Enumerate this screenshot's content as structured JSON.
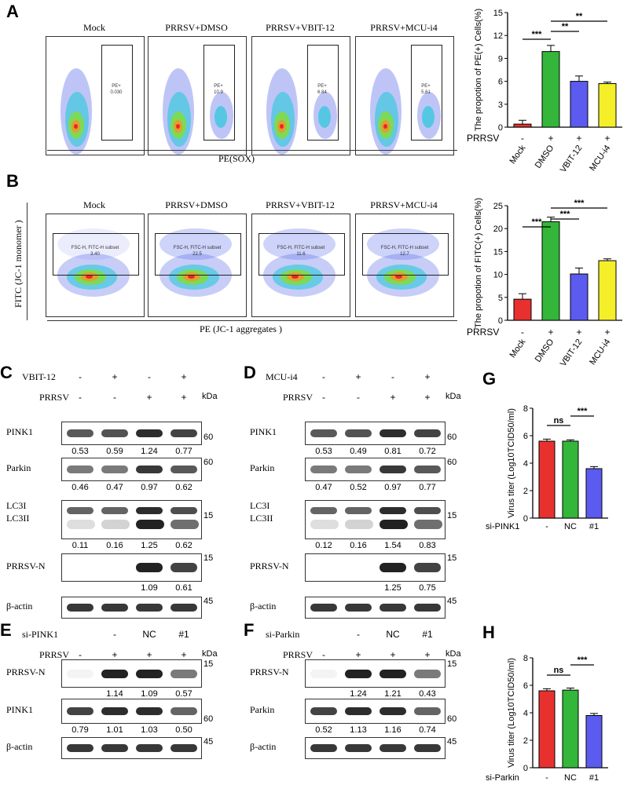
{
  "panels": {
    "A": {
      "letter": "A",
      "flow": {
        "titles": [
          "Mock",
          "PRRSV+DMSO",
          "PRRSV+VBIT-12",
          "PRRSV+MCU-i4"
        ],
        "gate_name": "PE+",
        "gate_values": [
          "0.030",
          "10.9",
          "6.84",
          "5.61"
        ],
        "xaxis_label": "PE(SOX)"
      }
    },
    "B": {
      "letter": "B",
      "flow": {
        "titles": [
          "Mock",
          "PRRSV+DMSO",
          "PRRSV+VBIT-12",
          "PRRSV+MCU-i4"
        ],
        "gate_name": "FSC-H, FITC-H subset",
        "gate_values": [
          "3.40",
          "22.5",
          "11.6",
          "12.7"
        ],
        "xaxis_label": "PE (JC-1 aggregates )",
        "yaxis_label": "FITC (JC-1 monomer )"
      }
    },
    "C": {
      "letter": "C",
      "treat1_label": "VBIT-12",
      "treat1_signs": [
        "-",
        "+",
        "-",
        "+"
      ],
      "treat2_label": "PRRSV",
      "treat2_signs": [
        "-",
        "-",
        "+",
        "+"
      ],
      "kda": "kDa",
      "blots": [
        {
          "name": "PINK1",
          "mw": "60",
          "values": [
            "0.53",
            "0.59",
            "1.24",
            "0.77"
          ]
        },
        {
          "name": "Parkin",
          "mw": "60",
          "values": [
            "0.46",
            "0.47",
            "0.97",
            "0.62"
          ]
        },
        {
          "name": "LC3I",
          "name2": "LC3II",
          "mw": "15",
          "values": [
            "0.11",
            "0.16",
            "1.25",
            "0.62"
          ]
        },
        {
          "name": "PRRSV-N",
          "mw": "15",
          "values": [
            "",
            "",
            "1.09",
            "0.61"
          ]
        },
        {
          "name": "β-actin",
          "mw": "45",
          "values": []
        }
      ]
    },
    "D": {
      "letter": "D",
      "treat1_label": "MCU-i4",
      "treat1_signs": [
        "-",
        "+",
        "-",
        "+"
      ],
      "treat2_label": "PRRSV",
      "treat2_signs": [
        "-",
        "-",
        "+",
        "+"
      ],
      "kda": "kDa",
      "blots": [
        {
          "name": "PINK1",
          "mw": "60",
          "values": [
            "0.53",
            "0.49",
            "0.81",
            "0.72"
          ]
        },
        {
          "name": "Parkin",
          "mw": "60",
          "values": [
            "0.47",
            "0.52",
            "0.97",
            "0.77"
          ]
        },
        {
          "name": "LC3I",
          "name2": "LC3II",
          "mw": "15",
          "values": [
            "0.12",
            "0.16",
            "1.54",
            "0.83"
          ]
        },
        {
          "name": "PRRSV-N",
          "mw": "15",
          "values": [
            "",
            "",
            "1.25",
            "0.75"
          ]
        },
        {
          "name": "β-actin",
          "mw": "45",
          "values": []
        }
      ]
    },
    "E": {
      "letter": "E",
      "treat1_label": "si-PINK1",
      "treat1_signs": [
        "",
        "-",
        "NC",
        "#1"
      ],
      "treat2_label": "PRRSV",
      "treat2_signs": [
        "-",
        "+",
        "+",
        "+"
      ],
      "kda": "kDa",
      "blots": [
        {
          "name": "PRRSV-N",
          "mw": "15",
          "values": [
            "",
            "1.14",
            "1.09",
            "0.57"
          ]
        },
        {
          "name": "PINK1",
          "mw": "60",
          "values": [
            "0.79",
            "1.01",
            "1.03",
            "0.50"
          ]
        },
        {
          "name": "β-actin",
          "mw": "45",
          "values": []
        }
      ]
    },
    "F": {
      "letter": "F",
      "treat1_label": "si-Parkin",
      "treat1_signs": [
        "",
        "-",
        "NC",
        "#1"
      ],
      "treat2_label": "PRRSV",
      "treat2_signs": [
        "-",
        "+",
        "+",
        "+"
      ],
      "kda": "kDa",
      "blots": [
        {
          "name": "PRRSV-N",
          "mw": "15",
          "values": [
            "",
            "1.24",
            "1.21",
            "0.43"
          ]
        },
        {
          "name": "Parkin",
          "mw": "60",
          "values": [
            "0.52",
            "1.13",
            "1.16",
            "0.74"
          ]
        },
        {
          "name": "β-actin",
          "mw": "45",
          "values": []
        }
      ]
    },
    "G": {
      "letter": "G"
    },
    "H": {
      "letter": "H"
    }
  },
  "chart_data": [
    {
      "id": "A-bar",
      "type": "bar",
      "ylabel": "The propotion of PE(+) Cells(%)",
      "ylim": [
        0,
        15
      ],
      "yticks": [
        0,
        3,
        6,
        9,
        12,
        15
      ],
      "categories": [
        "Mock",
        "DMSO",
        "VBIT-12",
        "MCU-i4"
      ],
      "values": [
        0.4,
        9.9,
        6.0,
        5.7
      ],
      "errors": [
        0.5,
        0.8,
        0.7,
        0.2
      ],
      "colors": [
        "#e8312f",
        "#33b63a",
        "#5b5bf0",
        "#f5ef2a"
      ],
      "group_label": "PRRSV",
      "group_signs": [
        "-",
        "+",
        "+",
        "+"
      ],
      "significance": [
        {
          "from": 0,
          "to": 1,
          "label": "***"
        },
        {
          "from": 1,
          "to": 2,
          "label": "**"
        },
        {
          "from": 1,
          "to": 3,
          "label": "**"
        }
      ]
    },
    {
      "id": "B-bar",
      "type": "bar",
      "ylabel": "The propotion of FITC(+) Cells(%)",
      "ylim": [
        0,
        25
      ],
      "yticks": [
        0,
        5,
        10,
        15,
        20,
        25
      ],
      "categories": [
        "Mock",
        "DMSO",
        "VBIT-12",
        "MCU-i4"
      ],
      "values": [
        4.6,
        21.5,
        10.1,
        13.0
      ],
      "errors": [
        1.2,
        1.0,
        1.3,
        0.4
      ],
      "colors": [
        "#e8312f",
        "#33b63a",
        "#5b5bf0",
        "#f5ef2a"
      ],
      "group_label": "PRRSV",
      "group_signs": [
        "-",
        "+",
        "+",
        "+"
      ],
      "significance": [
        {
          "from": 0,
          "to": 1,
          "label": "***"
        },
        {
          "from": 1,
          "to": 2,
          "label": "***"
        },
        {
          "from": 1,
          "to": 3,
          "label": "***"
        }
      ]
    },
    {
      "id": "G-bar",
      "type": "bar",
      "ylabel": "Virus titer (Log10TCID50/ml)",
      "ylim": [
        0,
        8
      ],
      "yticks": [
        0,
        2,
        4,
        6,
        8
      ],
      "categories": [
        "-",
        "NC",
        "#1"
      ],
      "values": [
        5.6,
        5.6,
        3.6
      ],
      "errors": [
        0.15,
        0.1,
        0.15
      ],
      "colors": [
        "#e8312f",
        "#33b63a",
        "#5b5bf0"
      ],
      "group_label": "si-PINK1",
      "significance": [
        {
          "from": 0,
          "to": 1,
          "label": "ns"
        },
        {
          "from": 1,
          "to": 2,
          "label": "***"
        }
      ]
    },
    {
      "id": "H-bar",
      "type": "bar",
      "ylabel": "Virus titer (Log10TCID50/ml)",
      "ylim": [
        0,
        8
      ],
      "yticks": [
        0,
        2,
        4,
        6,
        8
      ],
      "categories": [
        "-",
        "NC",
        "#1"
      ],
      "values": [
        5.6,
        5.65,
        3.8
      ],
      "errors": [
        0.15,
        0.15,
        0.15
      ],
      "colors": [
        "#e8312f",
        "#33b63a",
        "#5b5bf0"
      ],
      "group_label": "si-Parkin",
      "significance": [
        {
          "from": 0,
          "to": 1,
          "label": "ns"
        },
        {
          "from": 1,
          "to": 2,
          "label": "***"
        }
      ]
    }
  ]
}
